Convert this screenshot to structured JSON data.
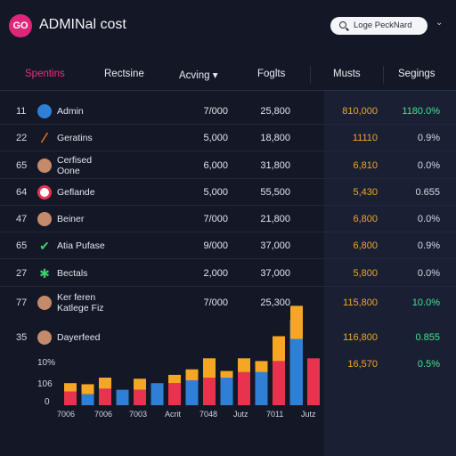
{
  "app": {
    "logo_text": "GO",
    "title": "ADMINal cost"
  },
  "search": {
    "placeholder": "Loge PeckNard"
  },
  "colors": {
    "accent": "#ec2f7d",
    "orange": "#f0a62a",
    "green": "#45e28d",
    "blue": "#2f7fd6",
    "teal": "#2a8fb0",
    "red": "#e8334f",
    "yellow": "#f5a623"
  },
  "columns": [
    "Spentins",
    "Rectsine",
    "Acving ▾",
    "Foglts",
    "Musts",
    "Segings"
  ],
  "rows": [
    {
      "num": "11",
      "name": "Admin",
      "c1": "7/000",
      "c2": "25,800",
      "c3": "810,000",
      "c4": "1180.0%",
      "icon": "blue-globe-icon",
      "c4_green": true
    },
    {
      "num": "22",
      "name": "Geratins",
      "c1": "5,000",
      "c2": "18,800",
      "c3": "11110",
      "c4": "0.9%",
      "icon": "orange-slash-icon"
    },
    {
      "num": "65",
      "name": "Cerfised\nOone",
      "c1": "6,000",
      "c2": "31,800",
      "c3": "6,810",
      "c4": "0.0%",
      "icon": "avatar-icon"
    },
    {
      "num": "64",
      "name": "Geflande",
      "c1": "5,000",
      "c2": "55,500",
      "c3": "5,430",
      "c4": "0.655",
      "icon": "google-icon"
    },
    {
      "num": "47",
      "name": "Beiner",
      "c1": "7/000",
      "c2": "21,800",
      "c3": "6,800",
      "c4": "0.0%",
      "icon": "avatar-icon"
    },
    {
      "num": "65",
      "name": "Atia Pufase",
      "c1": "9/000",
      "c2": "37,000",
      "c3": "6,800",
      "c4": "0.9%",
      "icon": "green-check-icon"
    },
    {
      "num": "27",
      "name": "Bectals",
      "c1": "2,000",
      "c2": "37,000",
      "c3": "5,800",
      "c4": "0.0%",
      "icon": "multicolor-icon"
    },
    {
      "num": "77",
      "name": "Ker feren\nKatlege Fiz",
      "c1": "7/000",
      "c2": "25,300",
      "c3": "115,800",
      "c4": "10.0%",
      "icon": "avatar-icon",
      "c4_green": true
    },
    {
      "num": "35",
      "name": "Dayerfeed",
      "c1": "",
      "c2": "",
      "c3": "116,800",
      "c4": "0.855",
      "icon": "avatar-icon",
      "c4_green": true
    },
    {
      "num": "",
      "name": "",
      "c1": "",
      "c2": "",
      "c3": "16,570",
      "c4": "0.5%",
      "icon": "",
      "c4_green": true
    }
  ],
  "chart_data": {
    "type": "bar",
    "title": "",
    "xlabel": "",
    "ylabel": "",
    "y_ticks": [
      "10%",
      "106",
      "0"
    ],
    "x_ticks": [
      "7006",
      "7006",
      "7003",
      "Acrit",
      "7048",
      "Jutz",
      "7011",
      "Jutz"
    ],
    "categories": [
      "1",
      "2",
      "3",
      "4",
      "5",
      "6",
      "7",
      "8",
      "9",
      "10",
      "11",
      "12",
      "13",
      "14"
    ],
    "series": [
      {
        "color": "#2f7fd6",
        "values": [
          0,
          20,
          0,
          28,
          0,
          40,
          0,
          45,
          0,
          50,
          0,
          60,
          0,
          155
        ]
      },
      {
        "color": "#e8334f",
        "values": [
          25,
          0,
          30,
          0,
          28,
          0,
          40,
          0,
          50,
          0,
          60,
          0,
          80,
          0
        ]
      },
      {
        "color": "#f5a623",
        "values": [
          15,
          18,
          20,
          0,
          20,
          0,
          15,
          20,
          35,
          12,
          25,
          20,
          45,
          0
        ]
      }
    ],
    "extra_right_bars": [
      {
        "color": "#2f7fd6",
        "value": 120
      },
      {
        "color": "#e8334f",
        "value": 85
      },
      {
        "color": "#f5a623",
        "value": 60
      }
    ]
  }
}
